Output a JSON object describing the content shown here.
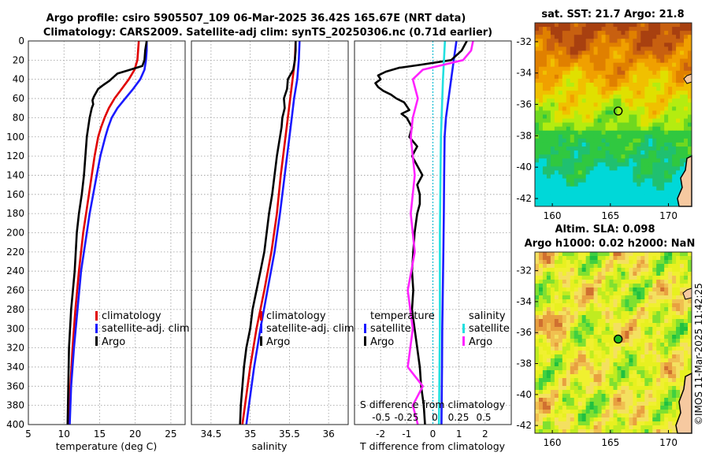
{
  "title": {
    "line1": "Argo profile: csiro 5905507_109 06-Mar-2025 36.42S 165.67E (NRT data)",
    "line2": "Climatology: CARS2009. Satellite-adj clim: synTS_20250306.nc (0.71d earlier)"
  },
  "colors": {
    "argo": "#000000",
    "clim": "#e00000",
    "sat": "#1a1aff",
    "s_argo": "#ff22ff",
    "s_sat": "#22e0e0"
  },
  "depth_ticks": [
    0,
    20,
    40,
    60,
    80,
    100,
    120,
    140,
    160,
    180,
    200,
    220,
    240,
    260,
    280,
    300,
    320,
    340,
    360,
    380,
    400
  ],
  "chart_data": [
    {
      "type": "line",
      "name": "temperature",
      "xlabel": "temperature (deg C)",
      "ylabel": "",
      "xlim": [
        5,
        27
      ],
      "ylim": [
        400,
        0
      ],
      "x_ticks": [
        5,
        10,
        15,
        20,
        25
      ],
      "legend": [
        "climatology",
        "satellite-adj. clim",
        "Argo"
      ],
      "series": [
        {
          "name": "climatology",
          "color": "clim",
          "depth": [
            0,
            10,
            20,
            30,
            40,
            50,
            60,
            70,
            80,
            90,
            100,
            120,
            140,
            160,
            180,
            200,
            240,
            280,
            320,
            360,
            400
          ],
          "values": [
            20.5,
            20.4,
            20.3,
            19.9,
            19.1,
            18.1,
            17.1,
            16.3,
            15.7,
            15.2,
            14.8,
            14.3,
            13.9,
            13.5,
            13.1,
            12.7,
            12.1,
            11.6,
            11.2,
            10.9,
            10.7
          ]
        },
        {
          "name": "satellite-adj. clim",
          "color": "sat",
          "depth": [
            0,
            10,
            20,
            30,
            40,
            50,
            60,
            70,
            80,
            90,
            100,
            120,
            140,
            160,
            180,
            200,
            240,
            280,
            320,
            360,
            400
          ],
          "values": [
            21.6,
            21.6,
            21.5,
            21.3,
            20.7,
            19.7,
            18.6,
            17.5,
            16.7,
            16.2,
            15.8,
            15.1,
            14.6,
            14.1,
            13.6,
            13.2,
            12.4,
            11.9,
            11.4,
            11.0,
            10.8
          ]
        },
        {
          "name": "Argo",
          "color": "argo",
          "depth": [
            0,
            10,
            20,
            26,
            30,
            34,
            38,
            42,
            46,
            50,
            54,
            58,
            62,
            66,
            70,
            80,
            90,
            100,
            120,
            140,
            160,
            180,
            200,
            240,
            280,
            320,
            360,
            400
          ],
          "values": [
            21.6,
            21.4,
            21.3,
            21.0,
            19.3,
            17.5,
            16.9,
            16.3,
            15.5,
            14.8,
            14.5,
            14.2,
            14.0,
            14.1,
            13.9,
            13.6,
            13.4,
            13.2,
            13.0,
            12.8,
            12.5,
            12.1,
            11.8,
            11.5,
            11.0,
            10.7,
            10.6,
            10.5
          ]
        }
      ]
    },
    {
      "type": "line",
      "name": "salinity",
      "xlabel": "salinity",
      "xlim": [
        34.25,
        36.25
      ],
      "ylim": [
        400,
        0
      ],
      "x_ticks": [
        34.5,
        35,
        35.5,
        36
      ],
      "legend": [
        "climatology",
        "satellite-adj. clim",
        "Argo"
      ],
      "series": [
        {
          "name": "climatology",
          "color": "clim",
          "depth": [
            0,
            20,
            40,
            60,
            80,
            100,
            140,
            180,
            220,
            260,
            300,
            340,
            400
          ],
          "values": [
            35.58,
            35.57,
            35.54,
            35.51,
            35.48,
            35.45,
            35.39,
            35.34,
            35.27,
            35.18,
            35.08,
            35.0,
            34.9
          ]
        },
        {
          "name": "satellite-adj. clim",
          "color": "sat",
          "depth": [
            0,
            20,
            40,
            60,
            80,
            100,
            140,
            180,
            220,
            260,
            300,
            340,
            400
          ],
          "values": [
            35.63,
            35.62,
            35.6,
            35.56,
            35.53,
            35.5,
            35.44,
            35.38,
            35.31,
            35.22,
            35.13,
            35.05,
            34.95
          ]
        },
        {
          "name": "Argo",
          "color": "argo",
          "depth": [
            0,
            10,
            20,
            30,
            40,
            50,
            60,
            70,
            80,
            90,
            100,
            120,
            140,
            160,
            180,
            200,
            220,
            240,
            260,
            280,
            300,
            320,
            340,
            360,
            380,
            400
          ],
          "values": [
            35.58,
            35.58,
            35.57,
            35.55,
            35.48,
            35.47,
            35.43,
            35.44,
            35.41,
            35.4,
            35.38,
            35.34,
            35.31,
            35.28,
            35.24,
            35.21,
            35.18,
            35.13,
            35.08,
            35.03,
            35.0,
            34.95,
            34.92,
            34.9,
            34.88,
            34.87
          ]
        }
      ]
    },
    {
      "type": "line",
      "name": "differences",
      "xlabel": "T difference from climatology",
      "xlabel_top": "S difference from climatology",
      "xlim": [
        -3,
        3
      ],
      "ylim": [
        400,
        0
      ],
      "x_ticks": [
        -2,
        -1,
        0,
        1,
        2
      ],
      "top_ticks": [
        "-0.5",
        "-0.25",
        "0",
        "0.25",
        "0.5"
      ],
      "legend_t_title": "temperature",
      "legend_s_title": "salinity",
      "legend_t": [
        "satellite",
        "Argo"
      ],
      "legend_s": [
        "satellite",
        "Argo"
      ],
      "series": [
        {
          "name": "T satellite",
          "color": "sat",
          "depth": [
            0,
            20,
            40,
            60,
            80,
            100,
            140,
            180,
            220,
            260,
            300,
            340,
            400
          ],
          "values": [
            0.9,
            0.8,
            0.7,
            0.6,
            0.5,
            0.45,
            0.43,
            0.42,
            0.4,
            0.38,
            0.36,
            0.35,
            0.33
          ]
        },
        {
          "name": "T Argo",
          "color": "argo",
          "depth": [
            0,
            10,
            20,
            25,
            28,
            32,
            36,
            40,
            44,
            48,
            52,
            56,
            60,
            64,
            68,
            72,
            76,
            80,
            90,
            100,
            110,
            120,
            130,
            140,
            150,
            160,
            170,
            180,
            200,
            220,
            240,
            260,
            280,
            300,
            320,
            340,
            360,
            380,
            400
          ],
          "values": [
            1.3,
            1.1,
            0.7,
            -0.5,
            -1.3,
            -1.8,
            -2.1,
            -2.0,
            -2.2,
            -2.1,
            -1.9,
            -1.6,
            -1.4,
            -1.1,
            -1.0,
            -0.9,
            -1.2,
            -1.0,
            -0.8,
            -0.9,
            -0.6,
            -0.8,
            -0.6,
            -0.4,
            -0.6,
            -0.5,
            -0.5,
            -0.6,
            -0.7,
            -0.75,
            -0.8,
            -0.75,
            -0.8,
            -0.7,
            -0.6,
            -0.5,
            -0.45,
            -0.35,
            -0.3
          ]
        },
        {
          "name": "S satellite",
          "color": "s_sat",
          "depth": [
            0,
            40,
            100,
            200,
            300,
            400
          ],
          "values": [
            0.12,
            0.1,
            0.08,
            0.07,
            0.07,
            0.06
          ]
        },
        {
          "name": "S Argo",
          "color": "s_argo",
          "depth": [
            0,
            10,
            20,
            30,
            40,
            60,
            80,
            100,
            140,
            180,
            220,
            260,
            300,
            340,
            360,
            380,
            400
          ],
          "values": [
            0.4,
            0.38,
            0.3,
            -0.1,
            -0.2,
            -0.15,
            -0.2,
            -0.22,
            -0.18,
            -0.22,
            -0.18,
            -0.25,
            -0.2,
            -0.25,
            -0.1,
            -0.2,
            -0.15
          ]
        }
      ]
    },
    {
      "type": "heatmap",
      "name": "sst-map",
      "title": "sat. SST: 21.7 Argo: 21.8",
      "lon_ticks": [
        160,
        165,
        170
      ],
      "lat_ticks": [
        -32,
        -34,
        -36,
        -38,
        -40,
        -42
      ],
      "xlim": [
        158.5,
        172
      ],
      "ylim": [
        -42.5,
        -30.8
      ],
      "argo_position": {
        "lon": 165.67,
        "lat": -36.42
      }
    },
    {
      "type": "heatmap",
      "name": "sla-map",
      "title1": "Altim. SLA: 0.098",
      "title2": "Argo h1000: 0.02 h2000: NaN",
      "lon_ticks": [
        160,
        165,
        170
      ],
      "lat_ticks": [
        -32,
        -34,
        -36,
        -38,
        -40,
        -42
      ],
      "xlim": [
        158.5,
        172
      ],
      "ylim": [
        -42.5,
        -30.8
      ],
      "argo_position": {
        "lon": 165.67,
        "lat": -36.42
      }
    }
  ],
  "credit": "©IMOS 11-Mar-2025 11:42:25"
}
